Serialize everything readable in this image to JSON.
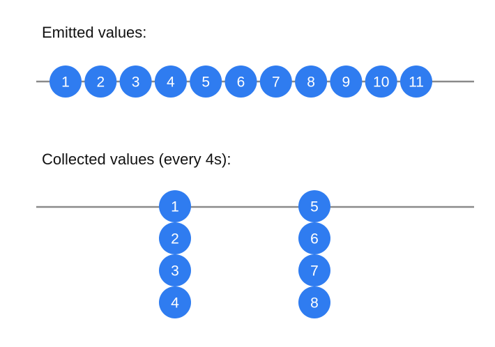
{
  "emitted": {
    "label": "Emitted values:",
    "values": [
      "1",
      "2",
      "3",
      "4",
      "5",
      "6",
      "7",
      "8",
      "9",
      "10",
      "11"
    ]
  },
  "collected": {
    "label": "Collected values (every 4s):",
    "groups": [
      [
        "1",
        "2",
        "3",
        "4"
      ],
      [
        "5",
        "6",
        "7",
        "8"
      ]
    ]
  },
  "colors": {
    "marble": "#2f7cf0",
    "timeline": "#8a8a8a"
  }
}
